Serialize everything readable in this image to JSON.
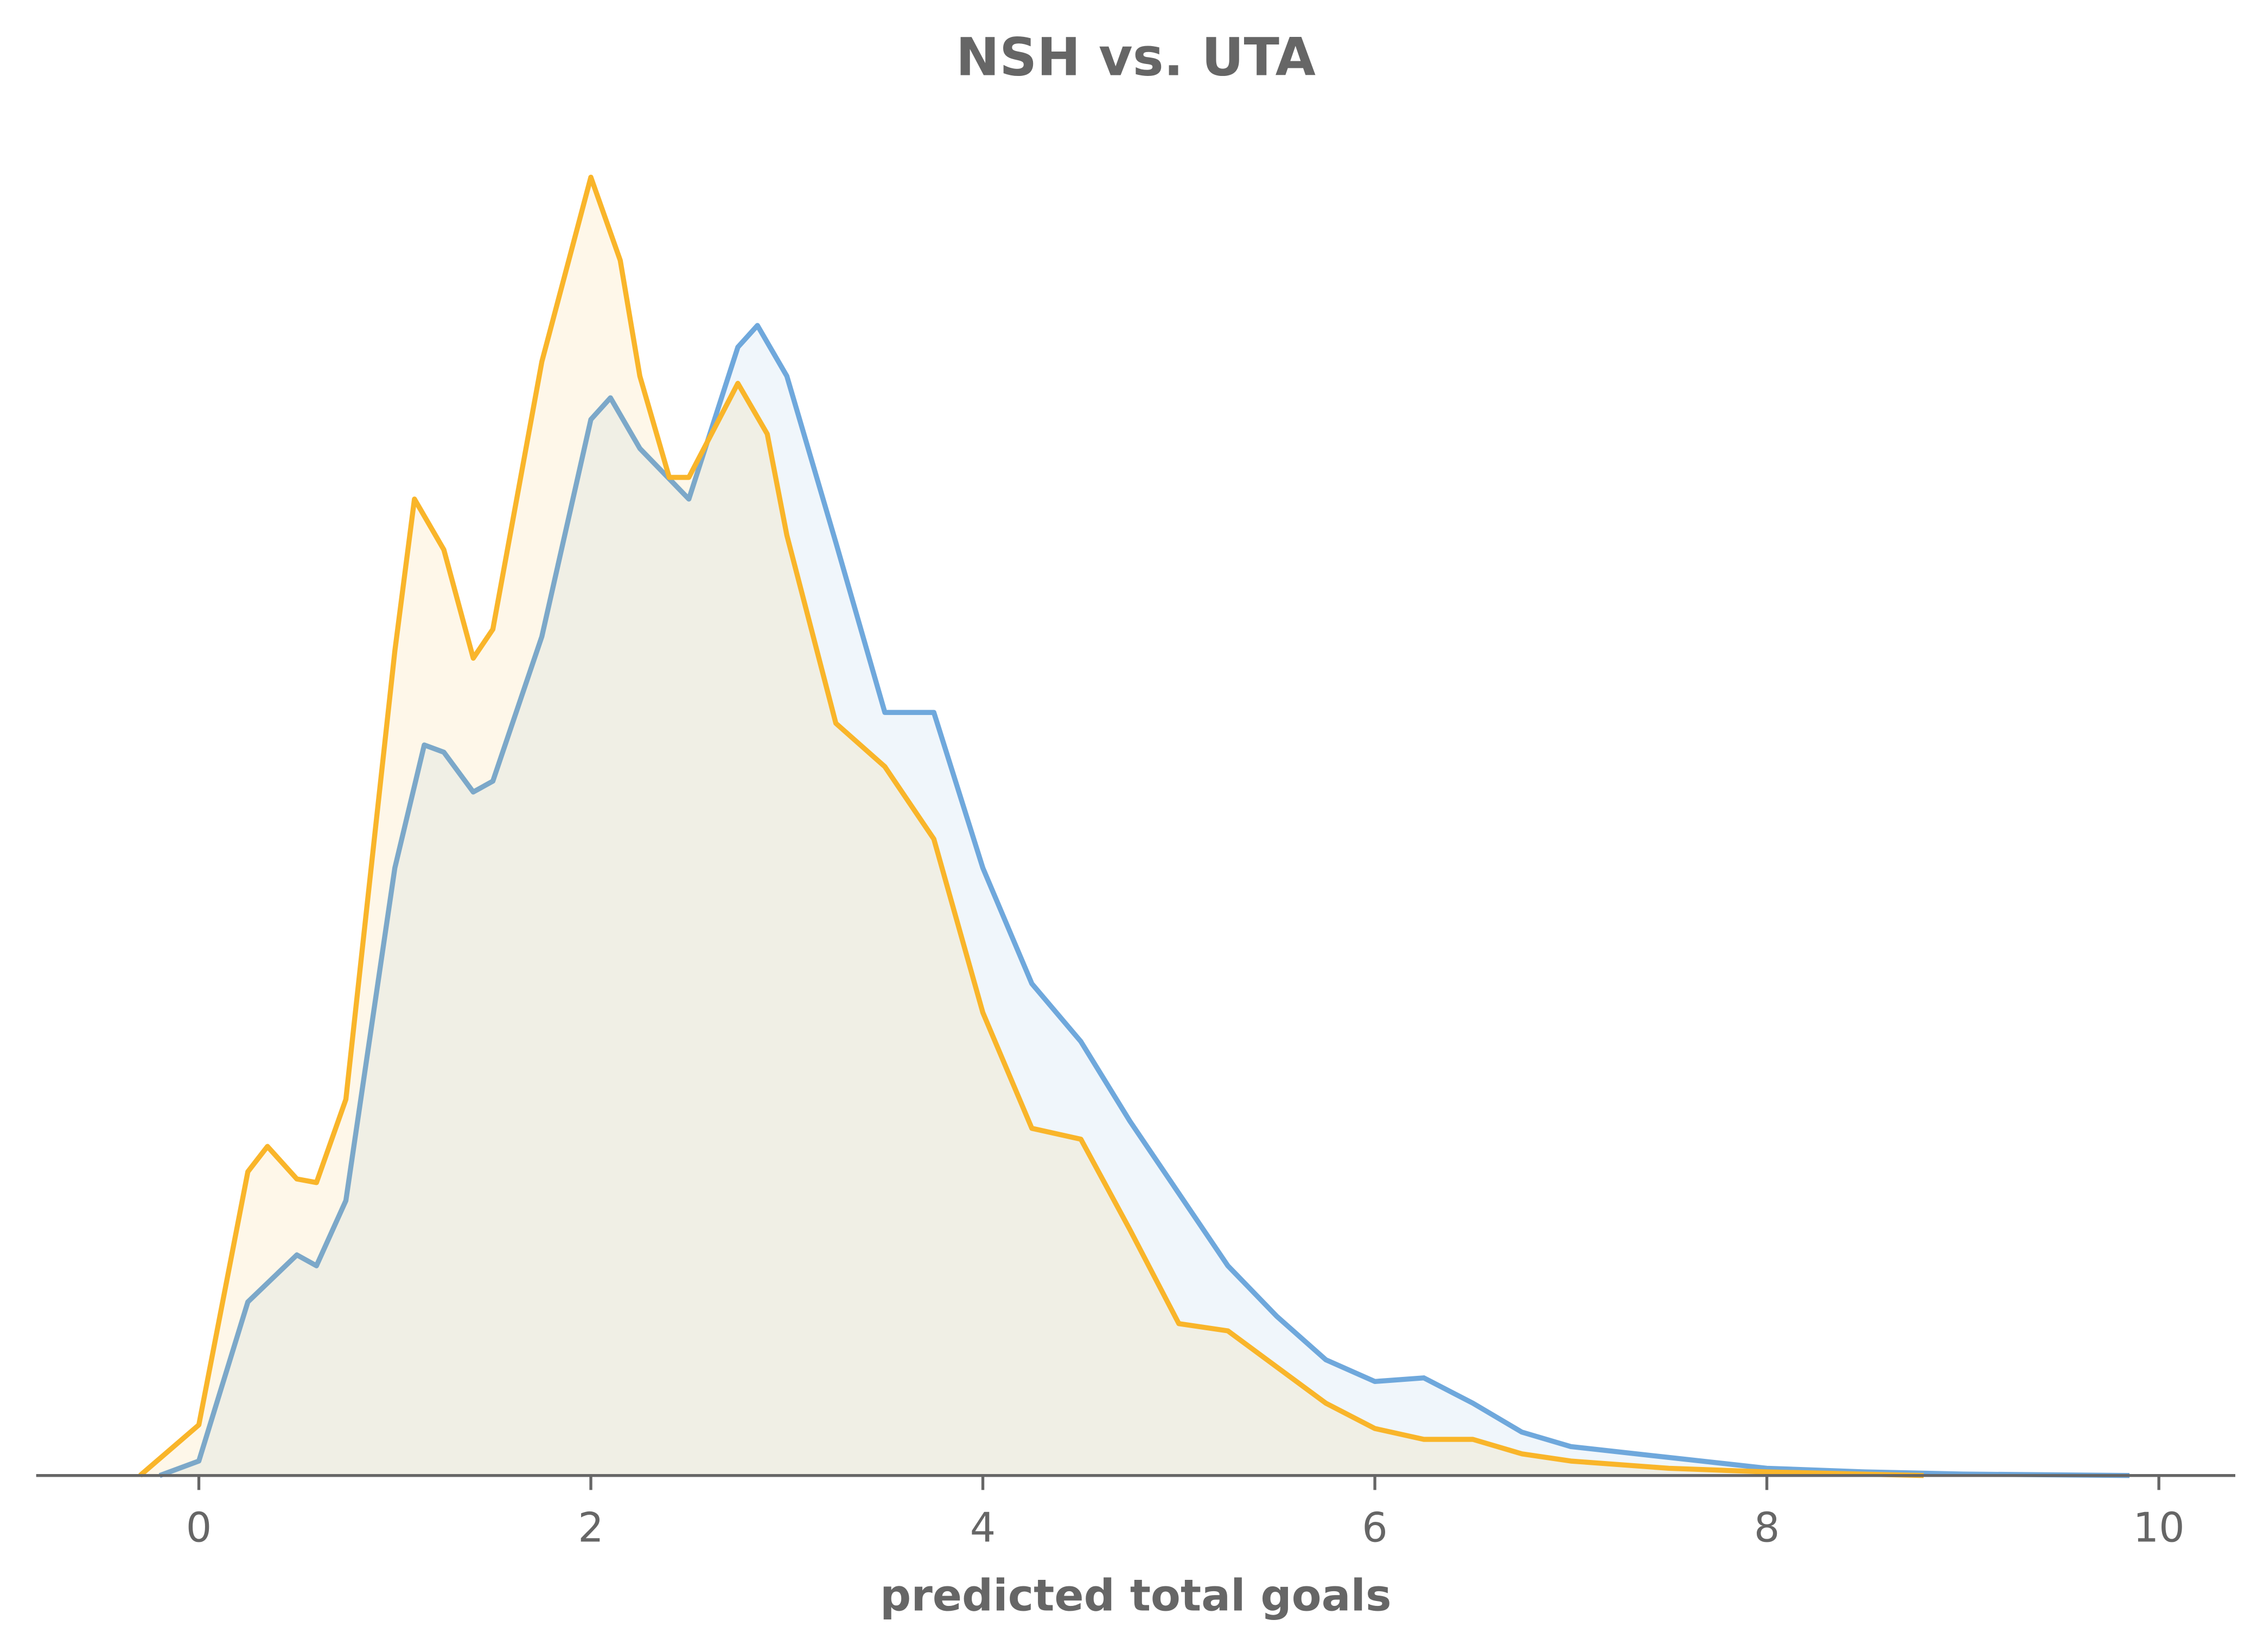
{
  "chart_data": {
    "type": "density",
    "title": "NSH vs. UTA",
    "xlabel": "predicted total goals",
    "xlim": [
      -0.83,
      10.39
    ],
    "xticks": [
      0,
      2,
      4,
      6,
      8,
      10
    ],
    "ylim": [
      0,
      0.4
    ],
    "series": [
      {
        "color": "#6fa8dc",
        "x": [
          -0.2,
          0,
          0.25,
          0.5,
          0.6,
          0.75,
          1.0,
          1.15,
          1.25,
          1.4,
          1.5,
          1.75,
          2.0,
          2.1,
          2.25,
          2.5,
          2.75,
          2.85,
          3.0,
          3.25,
          3.5,
          3.75,
          4.0,
          4.25,
          4.5,
          4.75,
          5.0,
          5.25,
          5.5,
          5.75,
          6.0,
          6.25,
          6.5,
          6.75,
          7.0,
          7.5,
          8.0,
          8.5,
          9.0,
          9.85
        ],
        "values": [
          0,
          0.004,
          0.048,
          0.061,
          0.058,
          0.076,
          0.168,
          0.202,
          0.2,
          0.189,
          0.192,
          0.232,
          0.292,
          0.298,
          0.284,
          0.27,
          0.312,
          0.318,
          0.304,
          0.258,
          0.211,
          0.211,
          0.168,
          0.136,
          0.12,
          0.098,
          0.078,
          0.058,
          0.044,
          0.032,
          0.026,
          0.027,
          0.02,
          0.012,
          0.008,
          0.005,
          0.002,
          0.001,
          0.0004,
          0
        ]
      },
      {
        "color": "#f9b52a",
        "x": [
          -0.3,
          0,
          0.25,
          0.35,
          0.5,
          0.6,
          0.75,
          1.0,
          1.1,
          1.25,
          1.4,
          1.5,
          1.75,
          2.0,
          2.15,
          2.25,
          2.4,
          2.5,
          2.75,
          2.9,
          3.0,
          3.25,
          3.5,
          3.75,
          4.0,
          4.25,
          4.5,
          4.75,
          5.0,
          5.25,
          5.5,
          5.75,
          6.0,
          6.25,
          6.5,
          6.75,
          7.0,
          7.5,
          8.0,
          8.8
        ],
        "values": [
          0,
          0.014,
          0.084,
          0.091,
          0.082,
          0.081,
          0.104,
          0.228,
          0.27,
          0.256,
          0.226,
          0.234,
          0.308,
          0.359,
          0.336,
          0.304,
          0.276,
          0.276,
          0.302,
          0.288,
          0.26,
          0.208,
          0.196,
          0.176,
          0.128,
          0.096,
          0.093,
          0.068,
          0.042,
          0.04,
          0.03,
          0.02,
          0.013,
          0.01,
          0.01,
          0.006,
          0.004,
          0.002,
          0.001,
          0
        ]
      }
    ]
  }
}
